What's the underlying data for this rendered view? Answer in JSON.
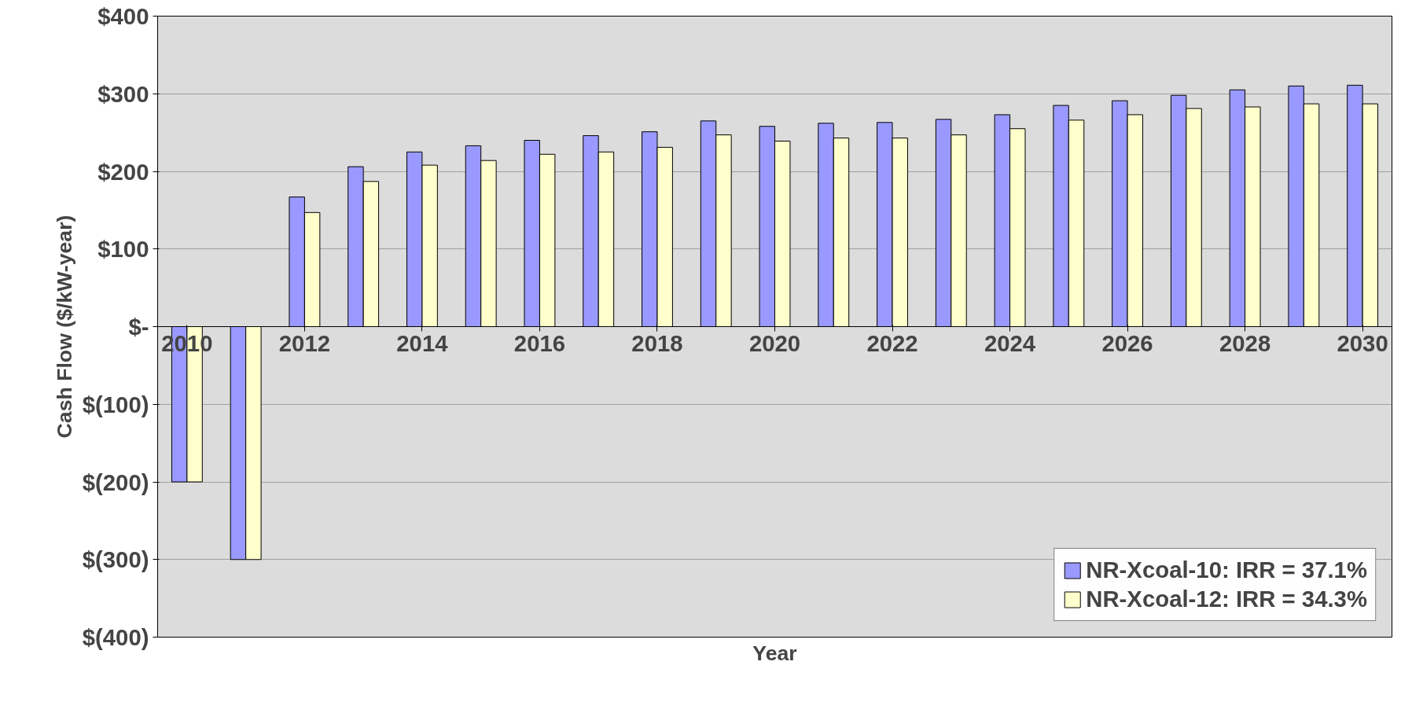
{
  "chart_data": {
    "type": "bar",
    "xlabel": "Year",
    "ylabel": "Cash Flow ($/kW-year)",
    "categories": [
      "2010",
      null,
      "2012",
      null,
      "2014",
      null,
      "2016",
      null,
      "2018",
      null,
      "2020",
      null,
      "2022",
      null,
      "2024",
      null,
      "2026",
      null,
      "2028",
      null,
      "2030"
    ],
    "series": [
      {
        "name": "NR-Xcoal-10: IRR = 37.1%",
        "color": "#9999ff",
        "values": [
          -200,
          -300,
          167,
          206,
          225,
          233,
          240,
          246,
          251,
          265,
          258,
          262,
          263,
          267,
          273,
          285,
          291,
          298,
          305,
          310,
          311
        ]
      },
      {
        "name": "NR-Xcoal-12: IRR = 34.3%",
        "color": "#ffffcc",
        "values": [
          -200,
          -300,
          147,
          187,
          208,
          214,
          222,
          225,
          231,
          247,
          239,
          243,
          243,
          247,
          255,
          266,
          273,
          281,
          283,
          287,
          287
        ]
      }
    ],
    "ylim": [
      -400,
      400
    ],
    "yticks": [
      {
        "value": 400,
        "label": "$400"
      },
      {
        "value": 300,
        "label": "$300"
      },
      {
        "value": 200,
        "label": "$200"
      },
      {
        "value": 100,
        "label": "$100"
      },
      {
        "value": 0,
        "label": "$-"
      },
      {
        "value": -100,
        "label": "$(100)"
      },
      {
        "value": -200,
        "label": "$(200)"
      },
      {
        "value": -300,
        "label": "$(300)"
      },
      {
        "value": -400,
        "label": "$(400)"
      }
    ],
    "grid": "y",
    "legend": "bottom right"
  }
}
